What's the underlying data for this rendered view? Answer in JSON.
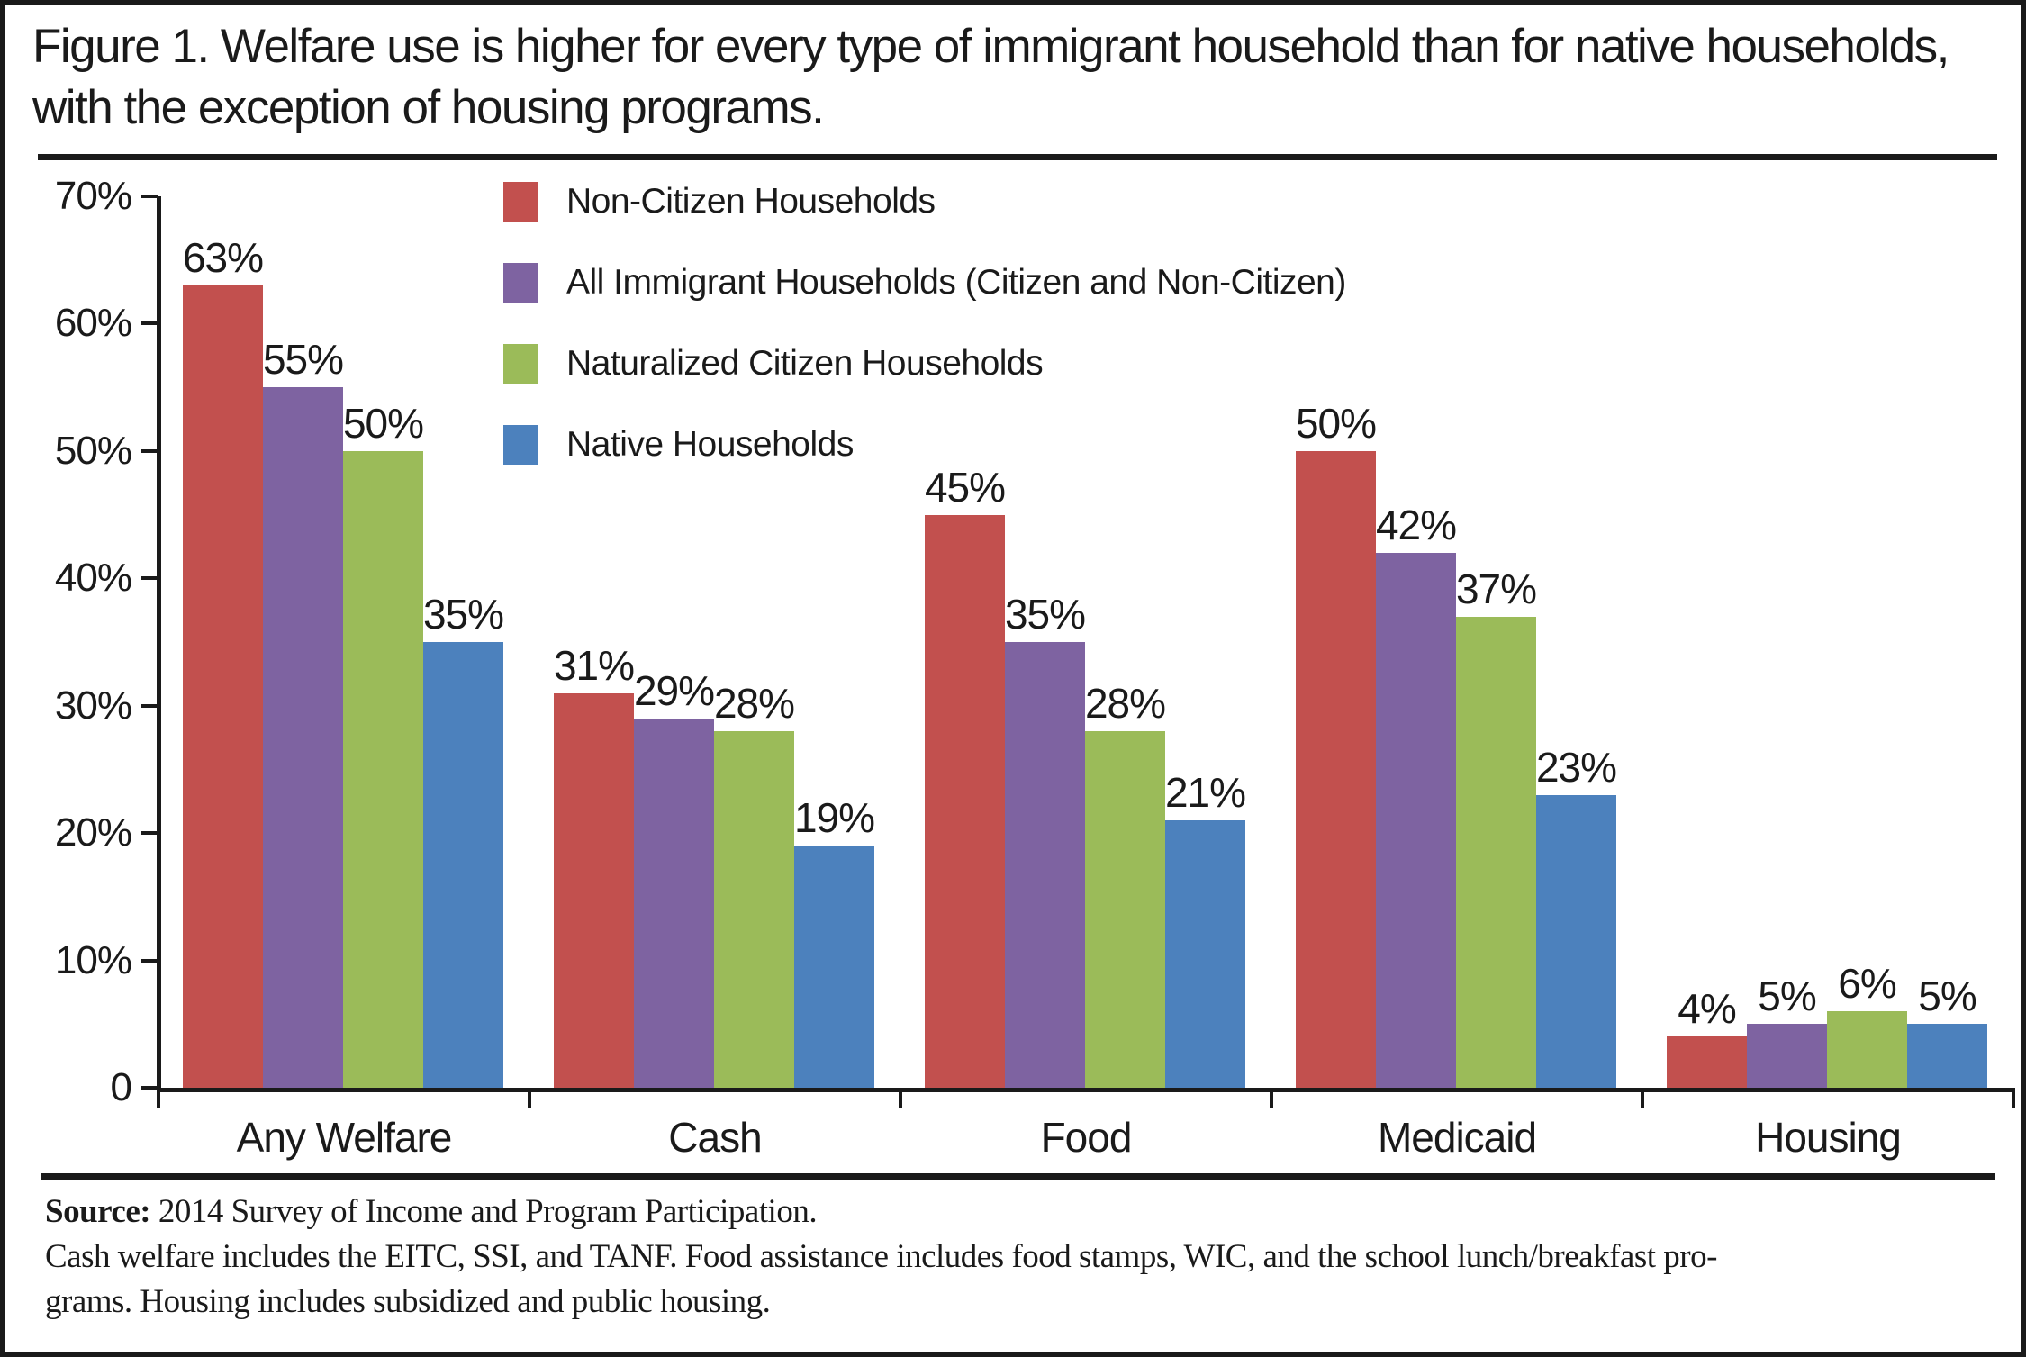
{
  "title": "Figure 1. Welfare use is higher for every type of immigrant household than for native households, with the exception of housing programs.",
  "chart_data": {
    "type": "bar",
    "title": "Figure 1. Welfare use is higher for every type of immigrant household than for native households, with the exception of housing programs.",
    "categories": [
      "Any Welfare",
      "Cash",
      "Food",
      "Medicaid",
      "Housing"
    ],
    "series": [
      {
        "name": "Non-Citizen Households",
        "color": "#C2504E",
        "values": [
          63,
          31,
          45,
          50,
          4
        ]
      },
      {
        "name": "All Immigrant Households (Citizen and Non-Citizen)",
        "color": "#7E63A1",
        "values": [
          55,
          29,
          35,
          42,
          5
        ]
      },
      {
        "name": "Naturalized Citizen Households",
        "color": "#9BBB59",
        "values": [
          50,
          28,
          28,
          37,
          6
        ]
      },
      {
        "name": "Native Households",
        "color": "#4C81BD",
        "values": [
          35,
          19,
          21,
          23,
          5
        ]
      }
    ],
    "value_label_suffix": "%",
    "y_axis": {
      "min": 0,
      "max": 70,
      "ticks": [
        {
          "value": 70,
          "label": "70%"
        },
        {
          "value": 60,
          "label": "60%"
        },
        {
          "value": 50,
          "label": "50%"
        },
        {
          "value": 40,
          "label": "40%"
        },
        {
          "value": 30,
          "label": "30%"
        },
        {
          "value": 20,
          "label": "20%"
        },
        {
          "value": 10,
          "label": "10%"
        },
        {
          "value": 0,
          "label": "0"
        }
      ]
    },
    "legend_position": "inside-top-left",
    "grid": false,
    "data_labels": true
  },
  "footer": {
    "source_label": "Source:",
    "source_text": " 2014 Survey of Income and Program Participation.",
    "note_lines": [
      "Cash welfare includes the EITC, SSI, and TANF. Food assistance includes food stamps, WIC, and the school lunch/breakfast pro-",
      "grams. Housing includes subsidized and public housing."
    ]
  },
  "colors": {
    "axis": "#1a1a1a",
    "text": "#1a1a1a",
    "border": "#1a1a1a",
    "background": "#ffffff"
  }
}
